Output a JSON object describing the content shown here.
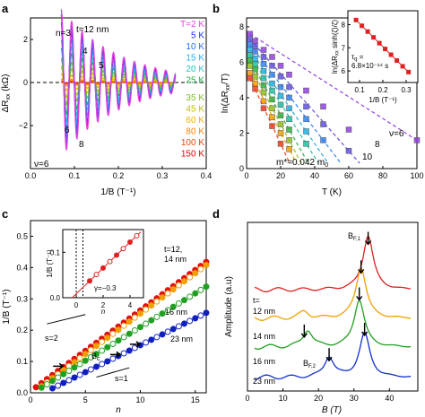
{
  "panels": {
    "a": {
      "label": "a",
      "title": "t=12 nm",
      "xlabel": "1/B (T⁻¹)",
      "ylabel": "ΔR",
      "ylabel_sub": "xx",
      "ylabel_unit": " (kΩ)",
      "xticks": [
        "0.0",
        "0.1",
        "0.2",
        "0.3",
        "0.4"
      ],
      "yticks": [
        "−2",
        "0",
        "2"
      ],
      "peak_labels": [
        "n=3",
        "4",
        "5",
        "6",
        "8"
      ],
      "nu_label": "ν=6"
    },
    "b": {
      "label": "b",
      "xlabel": "T (K)",
      "ylabel": "ln(ΔR",
      "ylabel_tail": "/T)",
      "xticks": [
        "0",
        "20",
        "40",
        "60",
        "80",
        "100"
      ],
      "yticks": [
        "0",
        "2",
        "4",
        "6",
        "8"
      ],
      "mass": "m*=0.042 m",
      "mass_sub": "0",
      "line_labels": [
        "8",
        "10",
        "ν=6"
      ],
      "inset": {
        "ylabel": "ln(ΔR",
        "ylabel_tail": " sinh(ζ)/ζ)",
        "xlabel": "1/B (T⁻¹)",
        "xticks": [
          "0.1",
          "0.2",
          "0.3"
        ],
        "yticks": [
          "6",
          "7",
          "8"
        ],
        "tau_line1": "τ",
        "tau_line1_sub": "q",
        "tau_line1_tail": " =",
        "tau_line2": "6.8×10⁻¹⁴ s"
      }
    },
    "c": {
      "label": "c",
      "xlabel": "n",
      "ylabel": "1/B (T⁻¹)",
      "xticks": [
        "0",
        "5",
        "10",
        "15"
      ],
      "yticks": [
        "0.0",
        "0.1",
        "0.2",
        "0.3",
        "0.4",
        "0.5"
      ],
      "labels": [
        "t=12,",
        "14 nm",
        "16 nm",
        "23 nm",
        "s=2",
        "s=1",
        "B",
        "c"
      ],
      "inset": {
        "xlabel": "n",
        "ylabel": "1/B (T⁻¹)",
        "xticks": [
          "0",
          "2",
          "4"
        ],
        "yticks": [
          "0.0",
          "0.1"
        ],
        "gamma": "γ=−0.3"
      }
    },
    "d": {
      "label": "d",
      "xlabel": "B (T)",
      "ylabel": "Amplitude (a.u)",
      "xticks": [
        "0",
        "10",
        "20",
        "30",
        "40"
      ],
      "t_label": "t=",
      "traces": [
        "12 nm",
        "14 nm",
        "16 nm",
        "23 nm"
      ],
      "peak1": "B",
      "peak1_sub": "F,1",
      "peak2": "B",
      "peak2_sub": "F,2"
    }
  },
  "legend_a": [
    "T=2 K",
    "5 K",
    "10 K",
    "15 K",
    "20 K",
    "25 K",
    "35 K",
    "45 K",
    "60 K",
    "80 K",
    "100 K",
    "150 K"
  ],
  "colors": {
    "temps": [
      "#e040e0",
      "#2030e0",
      "#2070f0",
      "#20b0f0",
      "#20c8c0",
      "#20b040",
      "#80c020",
      "#c0c000",
      "#f0b000",
      "#f08000",
      "#f04000",
      "#e00000"
    ],
    "d_traces": [
      "#e02020",
      "#f0a000",
      "#20a020",
      "#1030d0"
    ],
    "c_series": [
      "#e01010",
      "#f0a000",
      "#20a020",
      "#1020c0"
    ]
  },
  "chart_data": [
    {
      "panel": "a",
      "type": "line",
      "title": "t=12 nm",
      "xlabel": "1/B (T⁻¹)",
      "ylabel": "ΔRxx (kΩ)",
      "xlim": [
        0.0,
        0.4
      ],
      "ylim": [
        -4,
        3
      ],
      "series_names": [
        "T=2 K",
        "5 K",
        "10 K",
        "15 K",
        "20 K",
        "25 K",
        "35 K",
        "45 K",
        "60 K",
        "80 K",
        "100 K",
        "150 K"
      ],
      "oscillation": {
        "f_inverse_T": 42,
        "x_start": 0.07,
        "x_end": 0.33,
        "amp_2K_at_start": 3.4,
        "decay": 7.5
      },
      "temp_amp_factor": [
        1.0,
        0.93,
        0.82,
        0.7,
        0.58,
        0.47,
        0.33,
        0.22,
        0.12,
        0.05,
        0.02,
        0.005
      ]
    },
    {
      "panel": "b",
      "type": "scatter",
      "xlabel": "T (K)",
      "ylabel": "ln(ΔRxx/T)",
      "xlim": [
        0,
        100
      ],
      "ylim": [
        0,
        8.5
      ],
      "T": [
        2,
        5,
        10,
        15,
        20,
        25,
        35,
        45,
        60,
        80,
        100
      ],
      "series": [
        {
          "values": [
            7.6,
            7.2,
            6.7,
            6.3,
            5.8,
            5.3,
            4.4,
            3.5,
            2.2,
            null,
            1.6
          ]
        },
        {
          "values": [
            7.3,
            6.9,
            6.3,
            5.8,
            5.2,
            4.6,
            3.5,
            2.5,
            1.0,
            null,
            null
          ]
        },
        {
          "values": [
            7.0,
            6.6,
            5.9,
            5.3,
            4.6,
            4.0,
            2.8,
            1.6,
            null,
            null,
            null
          ]
        },
        {
          "values": [
            6.7,
            6.2,
            5.5,
            4.8,
            4.1,
            3.4,
            2.1,
            null,
            null,
            null,
            null
          ]
        },
        {
          "values": [
            6.4,
            5.9,
            5.1,
            4.4,
            3.6,
            2.8,
            1.4,
            null,
            null,
            null,
            null
          ]
        },
        {
          "values": [
            6.1,
            5.6,
            4.7,
            3.9,
            3.0,
            2.2,
            null,
            null,
            null,
            null,
            null
          ]
        },
        {
          "values": [
            5.8,
            5.2,
            4.3,
            3.4,
            2.5,
            1.6,
            null,
            null,
            null,
            null,
            null
          ]
        },
        {
          "values": [
            5.4,
            4.8,
            3.8,
            2.9,
            2.0,
            1.1,
            null,
            null,
            null,
            null,
            null
          ]
        },
        {
          "values": [
            5.1,
            4.5,
            3.4,
            2.4,
            1.4,
            null,
            null,
            null,
            null,
            null,
            null
          ]
        }
      ],
      "inset": {
        "xlabel": "1/B (T⁻¹)",
        "xlim": [
          0.05,
          0.35
        ],
        "ylim": [
          5.5,
          8.6
        ],
        "x": [
          0.085,
          0.11,
          0.135,
          0.16,
          0.185,
          0.21,
          0.235,
          0.26,
          0.285,
          0.31
        ],
        "y": [
          8.2,
          7.95,
          7.7,
          7.45,
          7.2,
          6.95,
          6.7,
          6.45,
          6.2,
          5.95
        ]
      }
    },
    {
      "panel": "c",
      "type": "scatter",
      "xlabel": "n",
      "ylabel": "1/B (T⁻¹)",
      "xlim": [
        0,
        16
      ],
      "ylim": [
        0,
        0.55
      ],
      "series": [
        {
          "name": "12 nm",
          "n_start": 1,
          "slope": 0.0258,
          "intercept": 0.005,
          "n_max": 16
        },
        {
          "name": "14 nm",
          "n_start": 1,
          "slope": 0.0258,
          "intercept": -0.005,
          "n_max": 16
        },
        {
          "name": "16 nm",
          "n_start": 1,
          "slope": 0.0215,
          "intercept": -0.005,
          "n_max": 16
        },
        {
          "name": "23 nm",
          "n_start": 2,
          "slope": 0.0172,
          "intercept": -0.02,
          "n_max": 16
        }
      ],
      "inset": {
        "xlabel": "n",
        "xlim": [
          -1,
          5
        ],
        "ylim": [
          0,
          0.15
        ],
        "gamma": -0.3
      }
    },
    {
      "panel": "d",
      "type": "line",
      "xlabel": "B (T)",
      "ylabel": "Amplitude (a.u)",
      "xlim": [
        0,
        48
      ],
      "series": [
        {
          "name": "12 nm",
          "peaks": [
            [
              34,
              1.6
            ]
          ]
        },
        {
          "name": "14 nm",
          "peaks": [
            [
              32,
              1.5
            ],
            [
              16,
              0.2
            ]
          ]
        },
        {
          "name": "16 nm",
          "peaks": [
            [
              31.5,
              1.4
            ],
            [
              17,
              0.5
            ]
          ]
        },
        {
          "name": "23 nm",
          "peaks": [
            [
              33,
              1.3
            ],
            [
              23,
              0.6
            ]
          ]
        }
      ]
    }
  ]
}
